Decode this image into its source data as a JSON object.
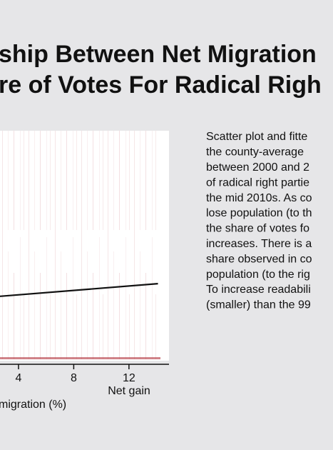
{
  "header": {
    "title_lines": [
      "ship Between Net Migration",
      "re of Votes For Radical Righ"
    ]
  },
  "chart_data": {
    "type": "scatter",
    "x_label": "migration (%)",
    "x_annotation": "Net gain",
    "xlim": [
      2.66,
      14.9
    ],
    "xticks": [
      4,
      8,
      12
    ],
    "ylim": [
      0,
      100
    ],
    "fit_line": {
      "color": "#111111",
      "x": [
        2.66,
        14.1
      ],
      "y": [
        28,
        33.5
      ]
    },
    "point_color": "#b0303a"
  },
  "description": {
    "lines": [
      "Scatter plot and fitte",
      "the county-average",
      "between 2000 and 2",
      "of radical right partie",
      "the mid 2010s. As co",
      "lose population (to th",
      "the share of votes fo",
      "increases. There is a",
      "share observed in co",
      "population (to the rig",
      "To increase readabili",
      "(smaller) than the 99"
    ]
  }
}
